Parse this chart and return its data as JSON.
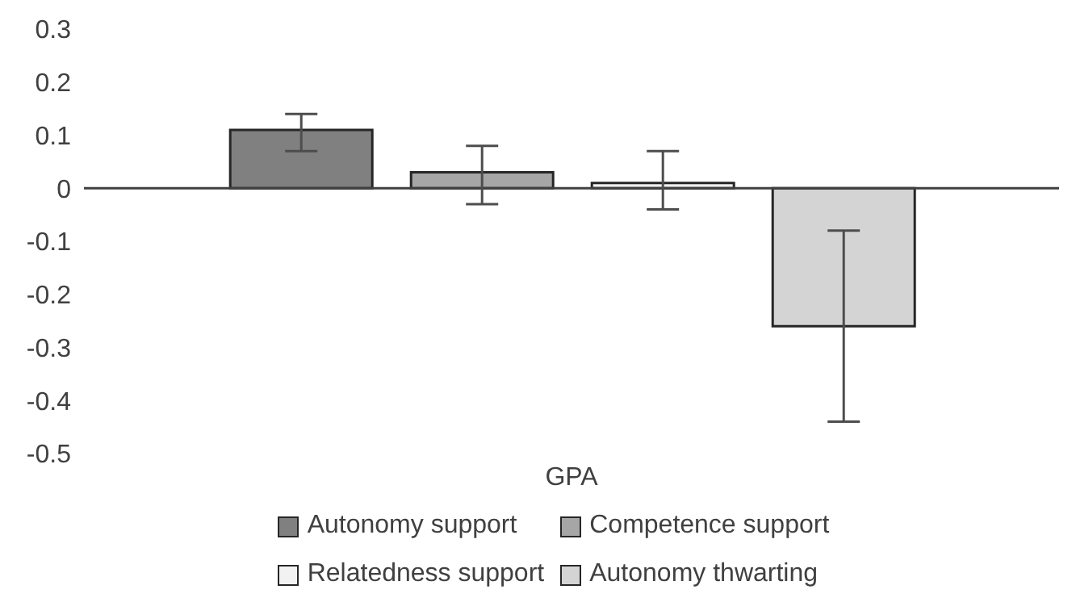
{
  "chart_data": {
    "type": "bar",
    "categories": [
      "GPA"
    ],
    "series": [
      {
        "name": "Autonomy support",
        "color": "#808080",
        "values": [
          0.11
        ],
        "errors": [
          [
            0.07,
            0.14
          ]
        ]
      },
      {
        "name": "Competence support",
        "color": "#a6a6a6",
        "values": [
          0.03
        ],
        "errors": [
          [
            -0.03,
            0.08
          ]
        ]
      },
      {
        "name": "Relatedness support",
        "color": "#f2f2f2",
        "values": [
          0.01
        ],
        "errors": [
          [
            -0.04,
            0.07
          ]
        ]
      },
      {
        "name": "Autonomy thwarting",
        "color": "#d4d4d4",
        "values": [
          -0.26
        ],
        "errors": [
          [
            -0.44,
            -0.08
          ]
        ]
      }
    ],
    "ylim": [
      -0.5,
      0.3
    ],
    "yticks": [
      -0.5,
      -0.4,
      -0.3,
      -0.2,
      -0.1,
      0,
      0.1,
      0.2,
      0.3
    ],
    "grid": false,
    "legend": "bottom",
    "ref_lines": [
      {
        "axis": "y",
        "value": 0,
        "color": "#404040"
      }
    ]
  }
}
